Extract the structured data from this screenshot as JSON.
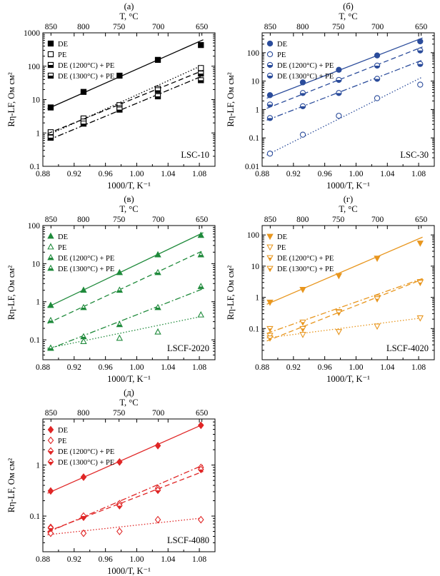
{
  "figure": {
    "symbols": {
      "Rsub": "η-LF",
      "xvar": "T",
      "xunit": "K",
      "ylabel_unit": "Ом см",
      "toplabel_unit": "°C"
    }
  },
  "chart_data": [
    {
      "type": "scatter",
      "panel_label": "(а)",
      "sample": "LSC-10",
      "color": "#000000",
      "marker": "square",
      "xlabel": "1000/T, K⁻¹",
      "ylabel": "Rη-LF, Ом см²",
      "top_axis_label": "T, °C",
      "xlim": [
        0.88,
        1.1
      ],
      "ylim": [
        0.1,
        1000
      ],
      "y_scale": "log",
      "x_ticks": [
        "0.88",
        "0.92",
        "0.96",
        "1.00",
        "1.04",
        "1.08"
      ],
      "y_ticks": [
        "0.1",
        "1",
        "10",
        "100",
        "1000"
      ],
      "top_ticks": [
        "850",
        "800",
        "750",
        "700",
        "650"
      ],
      "legend_position": "top-left",
      "series": [
        {
          "name": "DE",
          "fill": "full",
          "dash": "solid",
          "x": [
            0.89,
            0.932,
            0.978,
            1.027,
            1.082
          ],
          "y": [
            5.8,
            17,
            52,
            155,
            430
          ],
          "fit": [
            [
              0.886,
              5.3
            ],
            [
              1.085,
              620
            ]
          ]
        },
        {
          "name": "PE",
          "fill": "open",
          "dash": "dot",
          "x": [
            0.89,
            0.932,
            0.978,
            1.027,
            1.082
          ],
          "y": [
            1.05,
            2.7,
            6.8,
            21,
            88
          ],
          "fit": [
            [
              0.886,
              0.85
            ],
            [
              1.085,
              110
            ]
          ]
        },
        {
          "name": "DE (1200°C) + PE",
          "fill": "half",
          "dash": "dash",
          "x": [
            0.89,
            0.932,
            0.978,
            1.027,
            1.082
          ],
          "y": [
            0.75,
            2.2,
            5.5,
            19,
            60
          ],
          "fit": [
            [
              0.886,
              0.95
            ],
            [
              1.085,
              75
            ]
          ]
        },
        {
          "name": "DE (1300°C) + PE",
          "fill": "half",
          "dash": "dashdot",
          "x": [
            0.89,
            0.932,
            0.978,
            1.027,
            1.082
          ],
          "y": [
            0.72,
            1.9,
            5.0,
            12.5,
            38
          ],
          "fit": [
            [
              0.886,
              0.6
            ],
            [
              1.085,
              52
            ]
          ]
        }
      ]
    },
    {
      "type": "scatter",
      "panel_label": "(б)",
      "sample": "LSC-30",
      "color": "#2b4c9b",
      "marker": "circle",
      "xlabel": "1000/T, K⁻¹",
      "ylabel": "Rη-LF, Ом см²",
      "top_axis_label": "T, °C",
      "xlim": [
        0.88,
        1.1
      ],
      "ylim": [
        0.01,
        500
      ],
      "y_scale": "log",
      "x_ticks": [
        "0.88",
        "0.92",
        "0.96",
        "1.00",
        "1.04",
        "1.08"
      ],
      "y_ticks": [
        "0.01",
        "0.1",
        "1",
        "10",
        "100"
      ],
      "top_ticks": [
        "850",
        "800",
        "750",
        "700",
        "650"
      ],
      "legend_position": "top-left",
      "series": [
        {
          "name": "DE",
          "fill": "full",
          "dash": "solid",
          "x": [
            0.89,
            0.932,
            0.978,
            1.027,
            1.082
          ],
          "y": [
            3.2,
            9,
            25,
            80,
            250
          ],
          "fit": [
            [
              0.886,
              2.5
            ],
            [
              1.085,
              330
            ]
          ]
        },
        {
          "name": "PE",
          "fill": "open",
          "dash": "dot",
          "x": [
            0.89,
            0.932,
            0.978,
            1.027,
            1.082
          ],
          "y": [
            0.028,
            0.13,
            0.6,
            2.5,
            7.5
          ],
          "fit": [
            [
              0.886,
              0.025
            ],
            [
              1.085,
              14
            ]
          ]
        },
        {
          "name": "DE (1200°C) + PE",
          "fill": "half",
          "dash": "dash",
          "x": [
            0.89,
            0.932,
            0.978,
            1.027,
            1.082
          ],
          "y": [
            1.5,
            3.8,
            11,
            35,
            120
          ],
          "fit": [
            [
              0.886,
              1.1
            ],
            [
              1.085,
              160
            ]
          ]
        },
        {
          "name": "DE (1300°C) + PE",
          "fill": "half",
          "dash": "dashdot",
          "x": [
            0.89,
            0.932,
            0.978,
            1.027,
            1.082
          ],
          "y": [
            0.5,
            1.3,
            3.8,
            12,
            40
          ],
          "fit": [
            [
              0.886,
              0.42
            ],
            [
              1.085,
              55
            ]
          ]
        }
      ]
    },
    {
      "type": "scatter",
      "panel_label": "(в)",
      "sample": "LSCF-2020",
      "color": "#1f8a3b",
      "marker": "triangle-up",
      "xlabel": "1000/T, K⁻¹",
      "ylabel": "Rη-LF, Ом см²",
      "top_axis_label": "T, °C",
      "xlim": [
        0.88,
        1.1
      ],
      "ylim": [
        0.03,
        100
      ],
      "y_scale": "log",
      "x_ticks": [
        "0.88",
        "0.92",
        "0.96",
        "1.00",
        "1.04",
        "1.08"
      ],
      "y_ticks": [
        "0.1",
        "1",
        "10",
        "100"
      ],
      "top_ticks": [
        "850",
        "800",
        "750",
        "700",
        "650"
      ],
      "legend_position": "top-left",
      "series": [
        {
          "name": "DE",
          "fill": "full",
          "dash": "solid",
          "x": [
            0.89,
            0.932,
            0.978,
            1.027,
            1.082
          ],
          "y": [
            0.8,
            2.0,
            5.8,
            17,
            55
          ],
          "fit": [
            [
              0.886,
              0.72
            ],
            [
              1.085,
              65
            ]
          ]
        },
        {
          "name": "PE",
          "fill": "open",
          "dash": "dot",
          "x": [
            0.89,
            0.932,
            0.978,
            1.027,
            1.082
          ],
          "y": [
            0.06,
            0.09,
            0.11,
            0.16,
            0.45
          ],
          "fit": [
            [
              0.886,
              0.06
            ],
            [
              1.085,
              0.42
            ]
          ]
        },
        {
          "name": "DE (1200°C) + PE",
          "fill": "half",
          "dash": "dash",
          "x": [
            0.89,
            0.932,
            0.978,
            1.027,
            1.082
          ],
          "y": [
            0.32,
            0.7,
            2.0,
            5.8,
            17
          ],
          "fit": [
            [
              0.886,
              0.27
            ],
            [
              1.085,
              22
            ]
          ]
        },
        {
          "name": "DE (1300°C) + PE",
          "fill": "half",
          "dash": "dashdot",
          "x": [
            0.89,
            0.932,
            0.978,
            1.027,
            1.082
          ],
          "y": [
            0.06,
            0.12,
            0.25,
            0.7,
            2.5
          ],
          "fit": [
            [
              0.886,
              0.055
            ],
            [
              1.085,
              2.2
            ]
          ]
        }
      ]
    },
    {
      "type": "scatter",
      "panel_label": "(г)",
      "sample": "LSCF-4020",
      "color": "#e8961e",
      "marker": "triangle-down",
      "xlabel": "1000/T, K⁻¹",
      "ylabel": "Rη-LF, Ом см²",
      "top_axis_label": "T, °C",
      "xlim": [
        0.88,
        1.1
      ],
      "ylim": [
        0.01,
        200
      ],
      "y_scale": "log",
      "x_ticks": [
        "0.88",
        "0.92",
        "0.96",
        "1.00",
        "1.04",
        "1.08"
      ],
      "y_ticks": [
        "0.1",
        "1",
        "10",
        "100"
      ],
      "top_ticks": [
        "850",
        "800",
        "750",
        "700",
        "650"
      ],
      "legend_position": "top-left",
      "series": [
        {
          "name": "DE",
          "fill": "full",
          "dash": "solid",
          "x": [
            0.89,
            0.932,
            0.978,
            1.027,
            1.082
          ],
          "y": [
            0.7,
            1.8,
            5.0,
            18,
            55
          ],
          "fit": [
            [
              0.886,
              0.6
            ],
            [
              1.085,
              85
            ]
          ]
        },
        {
          "name": "PE",
          "fill": "open",
          "dash": "dot",
          "x": [
            0.89,
            0.932,
            0.978,
            1.027,
            1.082
          ],
          "y": [
            0.06,
            0.065,
            0.08,
            0.12,
            0.22
          ],
          "fit": [
            [
              0.886,
              0.05
            ],
            [
              1.085,
              0.22
            ]
          ]
        },
        {
          "name": "DE (1200°C) + PE",
          "fill": "half",
          "dash": "dash",
          "x": [
            0.89,
            0.932,
            0.978,
            1.027,
            1.082
          ],
          "y": [
            0.1,
            0.1,
            0.35,
            1.0,
            3.2
          ],
          "fit": [
            [
              0.886,
              0.04
            ],
            [
              1.085,
              3.8
            ]
          ]
        },
        {
          "name": "DE (1300°C) + PE",
          "fill": "half",
          "dash": "dashdot",
          "x": [
            0.89,
            0.932,
            0.978,
            1.027,
            1.082
          ],
          "y": [
            0.05,
            0.16,
            0.33,
            0.9,
            3.0
          ],
          "fit": [
            [
              0.886,
              0.07
            ],
            [
              1.085,
              4.0
            ]
          ]
        }
      ]
    },
    {
      "type": "scatter",
      "panel_label": "(д)",
      "sample": "LSCF-4080",
      "color": "#e02626",
      "marker": "diamond",
      "xlabel": "1000/T, K⁻¹",
      "ylabel": "Rη-LF, Ом см²",
      "top_axis_label": "T, °C",
      "xlim": [
        0.88,
        1.1
      ],
      "ylim": [
        0.02,
        8
      ],
      "y_scale": "log",
      "x_ticks": [
        "0.88",
        "0.92",
        "0.96",
        "1.00",
        "1.04",
        "1.08"
      ],
      "y_ticks": [
        "0.1",
        "1"
      ],
      "top_ticks": [
        "850",
        "800",
        "750",
        "700",
        "650"
      ],
      "legend_position": "top-left",
      "series": [
        {
          "name": "DE",
          "fill": "full",
          "dash": "solid",
          "x": [
            0.89,
            0.932,
            0.978,
            1.027,
            1.082
          ],
          "y": [
            0.31,
            0.58,
            1.15,
            2.4,
            6.0
          ],
          "fit": [
            [
              0.886,
              0.28
            ],
            [
              1.085,
              6.3
            ]
          ]
        },
        {
          "name": "PE",
          "fill": "open",
          "dash": "dot",
          "x": [
            0.89,
            0.932,
            0.978,
            1.027,
            1.082
          ],
          "y": [
            0.046,
            0.046,
            0.05,
            0.085,
            0.085
          ],
          "fit": [
            [
              0.886,
              0.043
            ],
            [
              1.085,
              0.092
            ]
          ]
        },
        {
          "name": "DE (1200°C) + PE",
          "fill": "half",
          "dash": "dash",
          "x": [
            0.89,
            0.932,
            0.978,
            1.027,
            1.082
          ],
          "y": [
            0.06,
            0.095,
            0.175,
            0.35,
            0.9
          ],
          "fit": [
            [
              0.886,
              0.05
            ],
            [
              1.085,
              0.75
            ]
          ]
        },
        {
          "name": "DE (1300°C) + PE",
          "fill": "half",
          "dash": "dashdot",
          "x": [
            0.89,
            0.932,
            0.978,
            1.027,
            1.082
          ],
          "y": [
            0.058,
            0.1,
            0.16,
            0.32,
            0.82
          ],
          "fit": [
            [
              0.886,
              0.048
            ],
            [
              1.085,
              1.0
            ]
          ]
        }
      ]
    }
  ]
}
